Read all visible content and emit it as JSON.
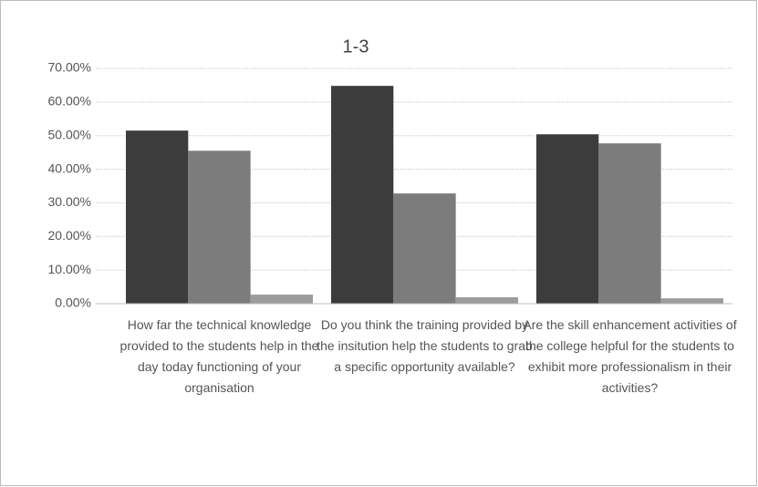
{
  "chart_data": {
    "type": "bar",
    "title": "1-3",
    "categories": [
      "How far the technical knowledge provided to the students help in the day today functioning of your organisation",
      "Do you think the training provided by the insitution help the students to grab a specific opportunity available?",
      "Are the skill enhancement activities of the college helpful for the students to exhibit more professionalism in their activities?"
    ],
    "series": [
      {
        "color": "#3c3c3c",
        "values": [
          51.5,
          64.8,
          50.4
        ]
      },
      {
        "color": "#7c7c7c",
        "values": [
          45.5,
          32.8,
          47.7
        ]
      },
      {
        "color": "#9c9c9c",
        "values": [
          2.7,
          1.9,
          1.6
        ]
      }
    ],
    "ylim": [
      0,
      70
    ],
    "yticks": [
      {
        "value": 0,
        "label": "0.00%"
      },
      {
        "value": 10,
        "label": "10.00%"
      },
      {
        "value": 20,
        "label": "20.00%"
      },
      {
        "value": 30,
        "label": "30.00%"
      },
      {
        "value": 40,
        "label": "40.00%"
      },
      {
        "value": 50,
        "label": "50.00%"
      },
      {
        "value": 60,
        "label": "60.00%"
      },
      {
        "value": 70,
        "label": "70.00%"
      }
    ],
    "grid": true
  }
}
